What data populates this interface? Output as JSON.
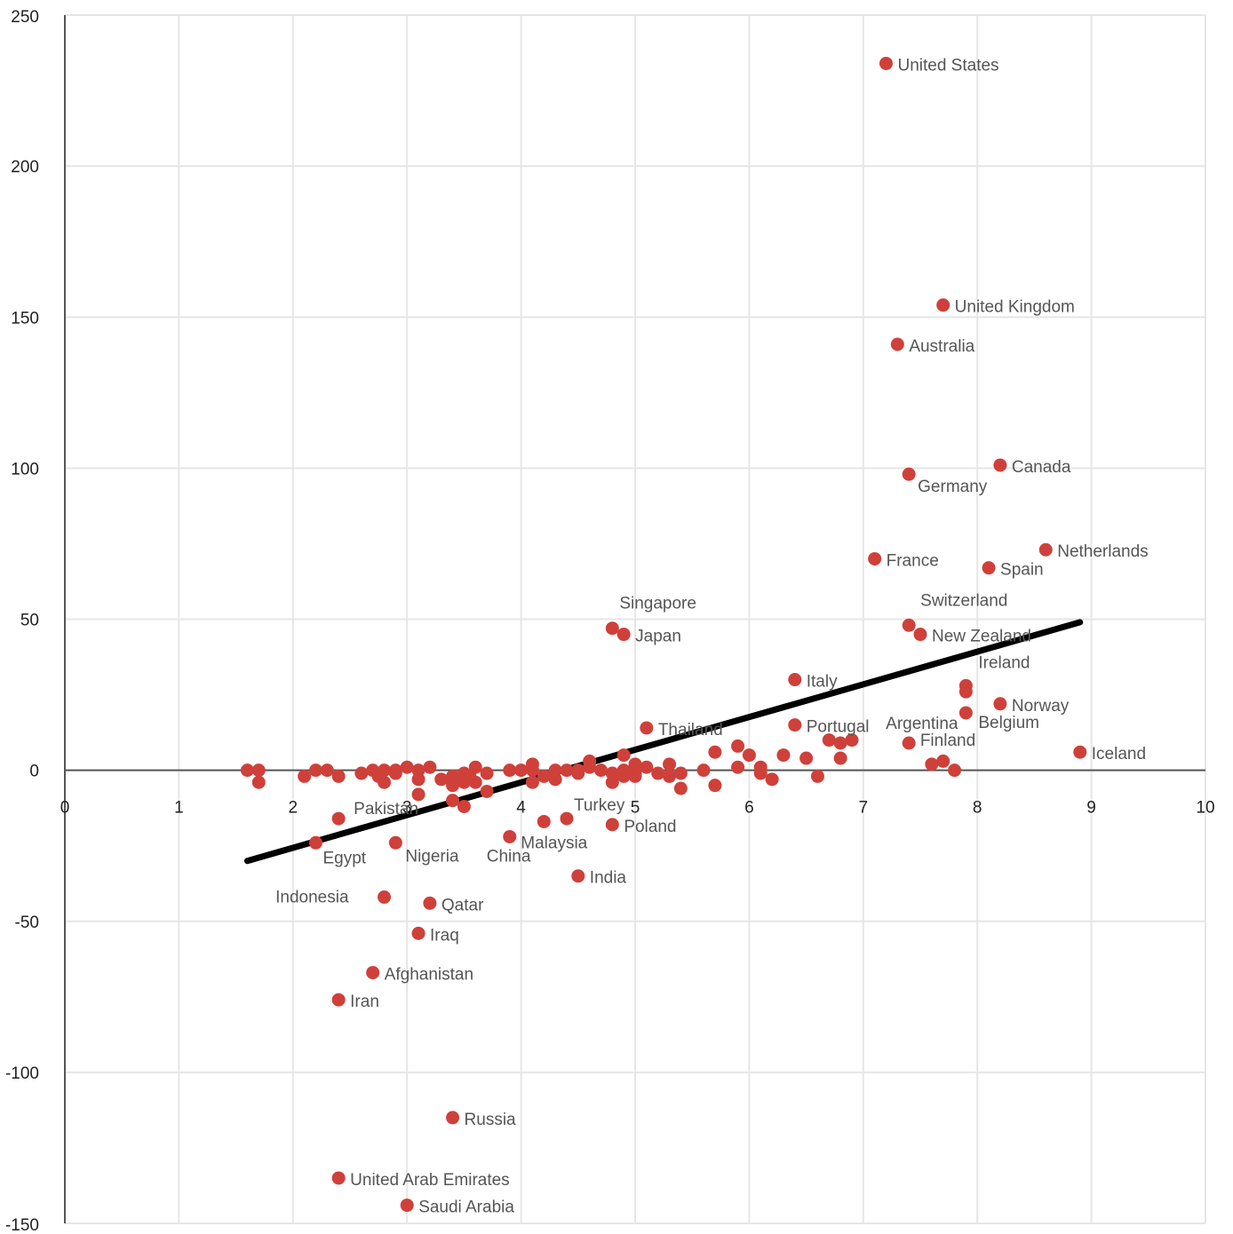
{
  "chart_data": {
    "type": "scatter",
    "title": "",
    "xlabel": "",
    "ylabel": "",
    "xlim": [
      0,
      10
    ],
    "ylim": [
      -150,
      250
    ],
    "x_ticks": [
      0,
      1,
      2,
      3,
      4,
      5,
      6,
      7,
      8,
      9,
      10
    ],
    "y_ticks": [
      250,
      200,
      150,
      100,
      50,
      0,
      -50,
      -100,
      -150
    ],
    "grid": true,
    "legend": "none",
    "colors": {
      "point": "#cf403a",
      "trend": "#000000",
      "grid": "#e6e6e6",
      "axis": "#555555"
    },
    "trendline": {
      "x": [
        1.6,
        8.9
      ],
      "y": [
        -30,
        49
      ]
    },
    "labeled_points": [
      {
        "x": 7.2,
        "y": 234,
        "label": "United States"
      },
      {
        "x": 7.7,
        "y": 154,
        "label": "United Kingdom"
      },
      {
        "x": 7.3,
        "y": 141,
        "label": "Australia"
      },
      {
        "x": 8.2,
        "y": 101,
        "label": "Canada"
      },
      {
        "x": 7.4,
        "y": 98,
        "label": "Germany"
      },
      {
        "x": 8.6,
        "y": 73,
        "label": "Netherlands"
      },
      {
        "x": 7.1,
        "y": 70,
        "label": "France"
      },
      {
        "x": 8.1,
        "y": 67,
        "label": "Spain"
      },
      {
        "x": 7.4,
        "y": 48,
        "label": "Switzerland"
      },
      {
        "x": 7.5,
        "y": 45,
        "label": "New Zealand"
      },
      {
        "x": 4.8,
        "y": 47,
        "label": "Singapore"
      },
      {
        "x": 4.9,
        "y": 45,
        "label": "Japan"
      },
      {
        "x": 6.4,
        "y": 30,
        "label": "Italy"
      },
      {
        "x": 7.9,
        "y": 28,
        "label": "Ireland"
      },
      {
        "x": 8.2,
        "y": 22,
        "label": "Norway"
      },
      {
        "x": 7.9,
        "y": 19,
        "label": "Belgium"
      },
      {
        "x": 6.4,
        "y": 15,
        "label": "Portugal"
      },
      {
        "x": 5.1,
        "y": 14,
        "label": "Thailand"
      },
      {
        "x": 7.4,
        "y": 9,
        "label": "Argentina"
      },
      {
        "x": 7.6,
        "y": 2,
        "label": "Finland"
      },
      {
        "x": 8.9,
        "y": 6,
        "label": "Iceland"
      },
      {
        "x": 2.4,
        "y": -16,
        "label": "Pakistan"
      },
      {
        "x": 4.8,
        "y": -18,
        "label": "Poland"
      },
      {
        "x": 4.4,
        "y": -16,
        "label": "Turkey"
      },
      {
        "x": 3.9,
        "y": -22,
        "label": "China"
      },
      {
        "x": 4.2,
        "y": -17,
        "label": "Malaysia"
      },
      {
        "x": 2.2,
        "y": -24,
        "label": "Egypt"
      },
      {
        "x": 2.9,
        "y": -24,
        "label": "Nigeria"
      },
      {
        "x": 4.5,
        "y": -35,
        "label": "India"
      },
      {
        "x": 2.8,
        "y": -42,
        "label": "Indonesia"
      },
      {
        "x": 3.2,
        "y": -44,
        "label": "Qatar"
      },
      {
        "x": 3.1,
        "y": -54,
        "label": "Iraq"
      },
      {
        "x": 2.7,
        "y": -67,
        "label": "Afghanistan"
      },
      {
        "x": 2.4,
        "y": -76,
        "label": "Iran"
      },
      {
        "x": 3.4,
        "y": -115,
        "label": "Russia"
      },
      {
        "x": 2.4,
        "y": -135,
        "label": "United Arab Emirates"
      },
      {
        "x": 3.0,
        "y": -144,
        "label": "Saudi Arabia"
      }
    ],
    "unlabeled_points": [
      [
        1.6,
        0
      ],
      [
        1.7,
        0
      ],
      [
        1.7,
        -4
      ],
      [
        2.1,
        -2
      ],
      [
        2.2,
        0
      ],
      [
        2.3,
        0
      ],
      [
        2.4,
        -2
      ],
      [
        2.6,
        -1
      ],
      [
        2.7,
        0
      ],
      [
        2.75,
        -2
      ],
      [
        2.8,
        0
      ],
      [
        2.8,
        -4
      ],
      [
        2.9,
        -1
      ],
      [
        2.9,
        0
      ],
      [
        3.0,
        1
      ],
      [
        3.1,
        0
      ],
      [
        3.1,
        -3
      ],
      [
        3.1,
        -8
      ],
      [
        3.2,
        1
      ],
      [
        3.3,
        -3
      ],
      [
        3.4,
        -2
      ],
      [
        3.4,
        -5
      ],
      [
        3.4,
        -10
      ],
      [
        3.5,
        -1
      ],
      [
        3.5,
        -4
      ],
      [
        3.5,
        -12
      ],
      [
        3.55,
        -2
      ],
      [
        3.6,
        1
      ],
      [
        3.6,
        -4
      ],
      [
        3.7,
        -1
      ],
      [
        3.7,
        -7
      ],
      [
        3.9,
        0
      ],
      [
        4.0,
        0
      ],
      [
        4.1,
        0
      ],
      [
        4.1,
        2
      ],
      [
        4.1,
        -4
      ],
      [
        4.2,
        -2
      ],
      [
        4.3,
        0
      ],
      [
        4.3,
        -3
      ],
      [
        4.4,
        0
      ],
      [
        4.5,
        -1
      ],
      [
        4.5,
        0
      ],
      [
        4.6,
        1
      ],
      [
        4.6,
        3
      ],
      [
        4.7,
        0
      ],
      [
        4.8,
        -1
      ],
      [
        4.8,
        -4
      ],
      [
        4.9,
        0
      ],
      [
        4.9,
        -2
      ],
      [
        4.9,
        5
      ],
      [
        5.0,
        2
      ],
      [
        5.0,
        -2
      ],
      [
        5.1,
        1
      ],
      [
        5.2,
        -1
      ],
      [
        5.3,
        2
      ],
      [
        5.3,
        -2
      ],
      [
        5.4,
        -1
      ],
      [
        5.4,
        -6
      ],
      [
        5.6,
        0
      ],
      [
        5.7,
        6
      ],
      [
        5.7,
        -5
      ],
      [
        5.9,
        8
      ],
      [
        5.9,
        1
      ],
      [
        6.0,
        5
      ],
      [
        6.1,
        1
      ],
      [
        6.1,
        -1
      ],
      [
        6.2,
        -3
      ],
      [
        6.3,
        5
      ],
      [
        6.5,
        4
      ],
      [
        6.6,
        -2
      ],
      [
        6.7,
        10
      ],
      [
        6.8,
        9
      ],
      [
        6.8,
        4
      ],
      [
        6.9,
        10
      ],
      [
        7.7,
        3
      ],
      [
        7.8,
        0
      ],
      [
        7.9,
        26
      ],
      [
        5.0,
        -1
      ]
    ]
  }
}
